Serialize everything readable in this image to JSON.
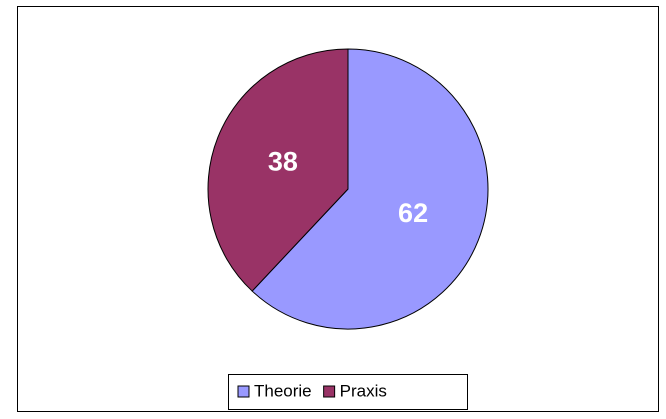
{
  "chart_data": {
    "type": "pie",
    "categories": [
      "Theorie",
      "Praxis"
    ],
    "values": [
      62,
      38
    ],
    "colors": [
      "#9999ff",
      "#993366"
    ],
    "legend": "bottom"
  }
}
